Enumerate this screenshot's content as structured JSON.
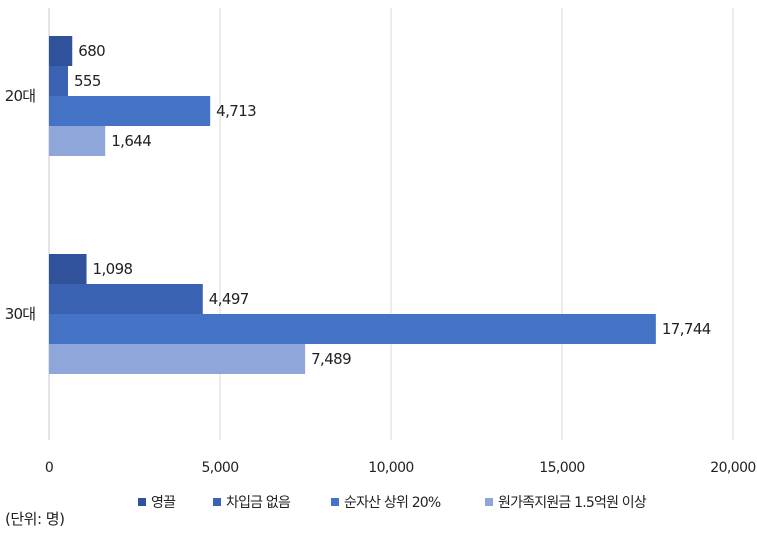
{
  "chart_data": {
    "type": "bar",
    "orientation": "horizontal",
    "categories": [
      "20대",
      "30대"
    ],
    "series": [
      {
        "name": "영끌",
        "color": "#2f529b",
        "values": [
          680,
          1098
        ]
      },
      {
        "name": "차입금 없음",
        "color": "#3a62b2",
        "values": [
          555,
          4497
        ]
      },
      {
        "name": "순자산 상위 20%",
        "color": "#4472c4",
        "values": [
          4713,
          17744
        ]
      },
      {
        "name": "원가족지원금 1.5억원 이상",
        "color": "#8ea6d9",
        "values": [
          1644,
          7489
        ]
      }
    ],
    "value_labels": [
      [
        "680",
        "1,098"
      ],
      [
        "555",
        "4,497"
      ],
      [
        "4,713",
        "17,744"
      ],
      [
        "1,644",
        "7,489"
      ]
    ],
    "x_ticks": [
      0,
      5000,
      10000,
      15000,
      20000
    ],
    "x_tick_labels": [
      "0",
      "5,000",
      "10,000",
      "15,000",
      "20,000"
    ],
    "xlim": [
      0,
      20000
    ],
    "grid": true,
    "legend_position": "bottom"
  },
  "unit_note": "(단위: 명)"
}
